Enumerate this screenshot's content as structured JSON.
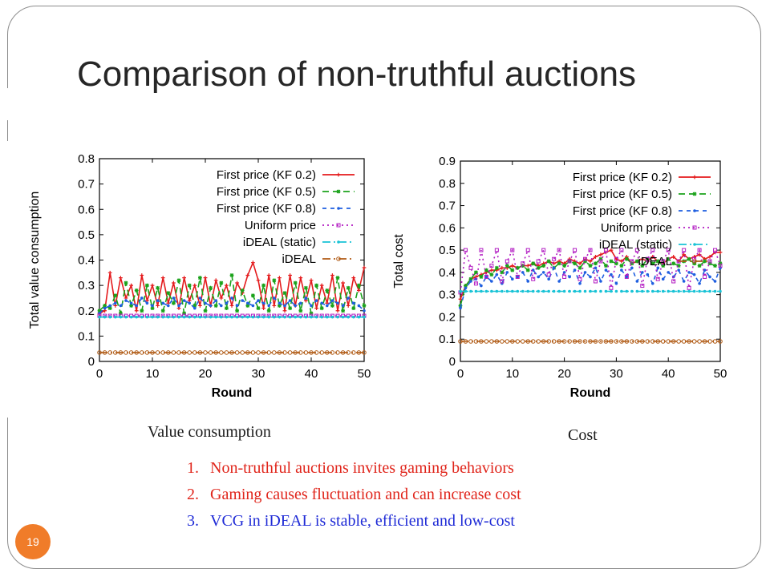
{
  "slide": {
    "title": "Comparison of non-truthful auctions",
    "page_number": "19",
    "captions": {
      "left": "Value consumption",
      "right": "Cost"
    },
    "notes": [
      {
        "num": "1.",
        "text": "Non-truthful auctions invites gaming behaviors",
        "color": "#e0251b"
      },
      {
        "num": "2.",
        "text": "Gaming causes fluctuation and can increase cost",
        "color": "#e0251b"
      },
      {
        "num": "3.",
        "text": "VCG in iDEAL is stable, efficient and low-cost",
        "color": "#1f2bd6"
      }
    ]
  },
  "chart_data": [
    {
      "type": "line",
      "xlabel": "Round",
      "ylabel": "Total value consumption",
      "xlim": [
        0,
        50
      ],
      "ylim": [
        0,
        0.8
      ],
      "xticks": [
        0,
        10,
        20,
        30,
        40,
        50
      ],
      "yticks": [
        0,
        0.1,
        0.2,
        0.3,
        0.4,
        0.5,
        0.6,
        0.7,
        0.8
      ],
      "grid": false,
      "legend": "top-right",
      "x": [
        0,
        1,
        2,
        3,
        4,
        5,
        6,
        7,
        8,
        9,
        10,
        11,
        12,
        13,
        14,
        15,
        16,
        17,
        18,
        19,
        20,
        21,
        22,
        23,
        24,
        25,
        26,
        27,
        28,
        29,
        30,
        31,
        32,
        33,
        34,
        35,
        36,
        37,
        38,
        39,
        40,
        41,
        42,
        43,
        44,
        45,
        46,
        47,
        48,
        49,
        50
      ],
      "series": [
        {
          "name": "First price (KF 0.2)",
          "color": "#e41a1c",
          "dash": "",
          "marker": "plus",
          "values": [
            0.19,
            0.2,
            0.35,
            0.22,
            0.33,
            0.25,
            0.3,
            0.2,
            0.34,
            0.24,
            0.3,
            0.22,
            0.33,
            0.23,
            0.31,
            0.21,
            0.33,
            0.24,
            0.3,
            0.22,
            0.33,
            0.22,
            0.32,
            0.25,
            0.3,
            0.22,
            0.31,
            0.27,
            0.34,
            0.39,
            0.32,
            0.21,
            0.34,
            0.22,
            0.33,
            0.2,
            0.34,
            0.22,
            0.33,
            0.24,
            0.32,
            0.21,
            0.3,
            0.23,
            0.34,
            0.2,
            0.31,
            0.22,
            0.33,
            0.28,
            0.37
          ]
        },
        {
          "name": "First price (KF 0.5)",
          "color": "#1ba21b",
          "dash": "8,5",
          "marker": "star",
          "values": [
            0.2,
            0.22,
            0.21,
            0.26,
            0.19,
            0.31,
            0.22,
            0.28,
            0.2,
            0.3,
            0.21,
            0.29,
            0.2,
            0.27,
            0.23,
            0.32,
            0.19,
            0.3,
            0.22,
            0.33,
            0.2,
            0.29,
            0.22,
            0.31,
            0.21,
            0.34,
            0.2,
            0.28,
            0.22,
            0.26,
            0.21,
            0.3,
            0.2,
            0.32,
            0.22,
            0.27,
            0.21,
            0.31,
            0.2,
            0.29,
            0.19,
            0.3,
            0.21,
            0.28,
            0.22,
            0.33,
            0.2,
            0.29,
            0.21,
            0.3,
            0.22
          ]
        },
        {
          "name": "First price (KF 0.8)",
          "color": "#1f5fe0",
          "dash": "5,5",
          "marker": "dot",
          "values": [
            0.19,
            0.21,
            0.22,
            0.23,
            0.22,
            0.24,
            0.23,
            0.22,
            0.25,
            0.23,
            0.22,
            0.24,
            0.23,
            0.22,
            0.25,
            0.22,
            0.24,
            0.23,
            0.21,
            0.25,
            0.23,
            0.22,
            0.24,
            0.22,
            0.23,
            0.25,
            0.22,
            0.24,
            0.23,
            0.22,
            0.24,
            0.23,
            0.22,
            0.25,
            0.23,
            0.22,
            0.24,
            0.22,
            0.23,
            0.25,
            0.22,
            0.24,
            0.23,
            0.22,
            0.24,
            0.23,
            0.22,
            0.25,
            0.23,
            0.22,
            0.2
          ]
        },
        {
          "name": "Uniform price",
          "color": "#b21bc2",
          "dash": "2,4",
          "marker": "square",
          "values": [
            0.18,
            0.18,
            0.18,
            0.18,
            0.18,
            0.18,
            0.18,
            0.18,
            0.18,
            0.18,
            0.18,
            0.18,
            0.18,
            0.18,
            0.18,
            0.18,
            0.18,
            0.18,
            0.18,
            0.18,
            0.18,
            0.18,
            0.18,
            0.18,
            0.18,
            0.18,
            0.18,
            0.18,
            0.18,
            0.18,
            0.18,
            0.18,
            0.18,
            0.18,
            0.18,
            0.18,
            0.18,
            0.18,
            0.18,
            0.18,
            0.18,
            0.18,
            0.18,
            0.18,
            0.18,
            0.18,
            0.18,
            0.18,
            0.18,
            0.18,
            0.18
          ]
        },
        {
          "name": "iDEAL (static)",
          "color": "#19c3d6",
          "dash": "10,4,2,4",
          "marker": "dot",
          "values": [
            0.175,
            0.175,
            0.175,
            0.175,
            0.175,
            0.175,
            0.175,
            0.175,
            0.175,
            0.175,
            0.175,
            0.175,
            0.175,
            0.175,
            0.175,
            0.175,
            0.175,
            0.175,
            0.175,
            0.175,
            0.175,
            0.175,
            0.175,
            0.175,
            0.175,
            0.175,
            0.175,
            0.175,
            0.175,
            0.175,
            0.175,
            0.175,
            0.175,
            0.175,
            0.175,
            0.175,
            0.175,
            0.175,
            0.175,
            0.175,
            0.175,
            0.175,
            0.175,
            0.175,
            0.175,
            0.175,
            0.175,
            0.175,
            0.175,
            0.175,
            0.175
          ]
        },
        {
          "name": "iDEAL",
          "color": "#b05a14",
          "dash": "10,4,2,4",
          "marker": "circle",
          "values": [
            0.035,
            0.035,
            0.035,
            0.035,
            0.035,
            0.035,
            0.035,
            0.035,
            0.035,
            0.035,
            0.035,
            0.035,
            0.035,
            0.035,
            0.035,
            0.035,
            0.035,
            0.035,
            0.035,
            0.035,
            0.035,
            0.035,
            0.035,
            0.035,
            0.035,
            0.035,
            0.035,
            0.035,
            0.035,
            0.035,
            0.035,
            0.035,
            0.035,
            0.035,
            0.035,
            0.035,
            0.035,
            0.035,
            0.035,
            0.035,
            0.035,
            0.035,
            0.035,
            0.035,
            0.035,
            0.035,
            0.035,
            0.035,
            0.035,
            0.035,
            0.035
          ]
        }
      ]
    },
    {
      "type": "line",
      "xlabel": "Round",
      "ylabel": "Total cost",
      "xlim": [
        0,
        50
      ],
      "ylim": [
        0,
        0.9
      ],
      "xticks": [
        0,
        10,
        20,
        30,
        40,
        50
      ],
      "yticks": [
        0,
        0.1,
        0.2,
        0.3,
        0.4,
        0.5,
        0.6,
        0.7,
        0.8,
        0.9
      ],
      "grid": false,
      "legend": "top-right",
      "x": [
        0,
        1,
        2,
        3,
        4,
        5,
        6,
        7,
        8,
        9,
        10,
        11,
        12,
        13,
        14,
        15,
        16,
        17,
        18,
        19,
        20,
        21,
        22,
        23,
        24,
        25,
        26,
        27,
        28,
        29,
        30,
        31,
        32,
        33,
        34,
        35,
        36,
        37,
        38,
        39,
        40,
        41,
        42,
        43,
        44,
        45,
        46,
        47,
        48,
        49,
        50
      ],
      "series": [
        {
          "name": "First price (KF 0.2)",
          "color": "#e41a1c",
          "dash": "",
          "marker": "plus",
          "values": [
            0.28,
            0.34,
            0.37,
            0.38,
            0.39,
            0.4,
            0.41,
            0.41,
            0.42,
            0.42,
            0.43,
            0.42,
            0.43,
            0.43,
            0.44,
            0.43,
            0.44,
            0.45,
            0.44,
            0.45,
            0.44,
            0.46,
            0.45,
            0.44,
            0.46,
            0.45,
            0.47,
            0.48,
            0.49,
            0.5,
            0.46,
            0.45,
            0.47,
            0.44,
            0.45,
            0.46,
            0.45,
            0.47,
            0.45,
            0.44,
            0.46,
            0.47,
            0.45,
            0.48,
            0.46,
            0.47,
            0.48,
            0.46,
            0.47,
            0.49,
            0.49
          ]
        },
        {
          "name": "First price (KF 0.5)",
          "color": "#1ba21b",
          "dash": "8,5",
          "marker": "star",
          "values": [
            0.25,
            0.34,
            0.37,
            0.4,
            0.38,
            0.41,
            0.39,
            0.42,
            0.4,
            0.43,
            0.41,
            0.42,
            0.43,
            0.41,
            0.44,
            0.42,
            0.43,
            0.45,
            0.42,
            0.44,
            0.43,
            0.45,
            0.44,
            0.42,
            0.45,
            0.43,
            0.44,
            0.46,
            0.43,
            0.45,
            0.44,
            0.43,
            0.46,
            0.44,
            0.45,
            0.43,
            0.46,
            0.44,
            0.45,
            0.43,
            0.46,
            0.44,
            0.43,
            0.45,
            0.46,
            0.44,
            0.43,
            0.45,
            0.44,
            0.43,
            0.44
          ]
        },
        {
          "name": "First price (KF 0.8)",
          "color": "#1f5fe0",
          "dash": "5,5",
          "marker": "dot",
          "values": [
            0.24,
            0.33,
            0.36,
            0.37,
            0.34,
            0.38,
            0.36,
            0.39,
            0.35,
            0.4,
            0.37,
            0.38,
            0.4,
            0.36,
            0.41,
            0.38,
            0.4,
            0.37,
            0.42,
            0.36,
            0.4,
            0.38,
            0.41,
            0.35,
            0.4,
            0.38,
            0.42,
            0.36,
            0.41,
            0.39,
            0.35,
            0.41,
            0.38,
            0.42,
            0.36,
            0.4,
            0.39,
            0.35,
            0.42,
            0.37,
            0.4,
            0.38,
            0.41,
            0.36,
            0.4,
            0.39,
            0.35,
            0.41,
            0.38,
            0.36,
            0.42
          ]
        },
        {
          "name": "Uniform price",
          "color": "#b21bc2",
          "dash": "2,4",
          "marker": "square",
          "values": [
            0.31,
            0.5,
            0.42,
            0.35,
            0.5,
            0.38,
            0.43,
            0.5,
            0.36,
            0.45,
            0.5,
            0.38,
            0.44,
            0.5,
            0.37,
            0.45,
            0.5,
            0.39,
            0.46,
            0.5,
            0.38,
            0.45,
            0.5,
            0.37,
            0.46,
            0.5,
            0.36,
            0.45,
            0.5,
            0.33,
            0.46,
            0.5,
            0.38,
            0.45,
            0.5,
            0.34,
            0.46,
            0.5,
            0.37,
            0.45,
            0.5,
            0.36,
            0.45,
            0.5,
            0.33,
            0.46,
            0.5,
            0.38,
            0.45,
            0.5,
            0.43
          ]
        },
        {
          "name": "iDEAL (static)",
          "color": "#19c3d6",
          "dash": "10,4,2,4",
          "marker": "dot",
          "values": [
            0.315,
            0.315,
            0.315,
            0.315,
            0.315,
            0.315,
            0.315,
            0.315,
            0.315,
            0.315,
            0.315,
            0.315,
            0.315,
            0.315,
            0.315,
            0.315,
            0.315,
            0.315,
            0.315,
            0.315,
            0.315,
            0.315,
            0.315,
            0.315,
            0.315,
            0.315,
            0.315,
            0.315,
            0.315,
            0.315,
            0.315,
            0.315,
            0.315,
            0.315,
            0.315,
            0.315,
            0.315,
            0.315,
            0.315,
            0.315,
            0.315,
            0.315,
            0.315,
            0.315,
            0.315,
            0.315,
            0.315,
            0.315,
            0.315,
            0.315,
            0.315
          ]
        },
        {
          "name": "iDEAL",
          "color": "#b05a14",
          "dash": "10,4,2,4",
          "marker": "circle",
          "values": [
            0.09,
            0.09,
            0.09,
            0.09,
            0.09,
            0.09,
            0.09,
            0.09,
            0.09,
            0.09,
            0.09,
            0.09,
            0.09,
            0.09,
            0.09,
            0.09,
            0.09,
            0.09,
            0.09,
            0.09,
            0.09,
            0.09,
            0.09,
            0.09,
            0.09,
            0.09,
            0.09,
            0.09,
            0.09,
            0.09,
            0.09,
            0.09,
            0.09,
            0.09,
            0.09,
            0.09,
            0.09,
            0.09,
            0.09,
            0.09,
            0.09,
            0.09,
            0.09,
            0.09,
            0.09,
            0.09,
            0.09,
            0.09,
            0.09,
            0.09,
            0.09
          ]
        }
      ]
    }
  ]
}
